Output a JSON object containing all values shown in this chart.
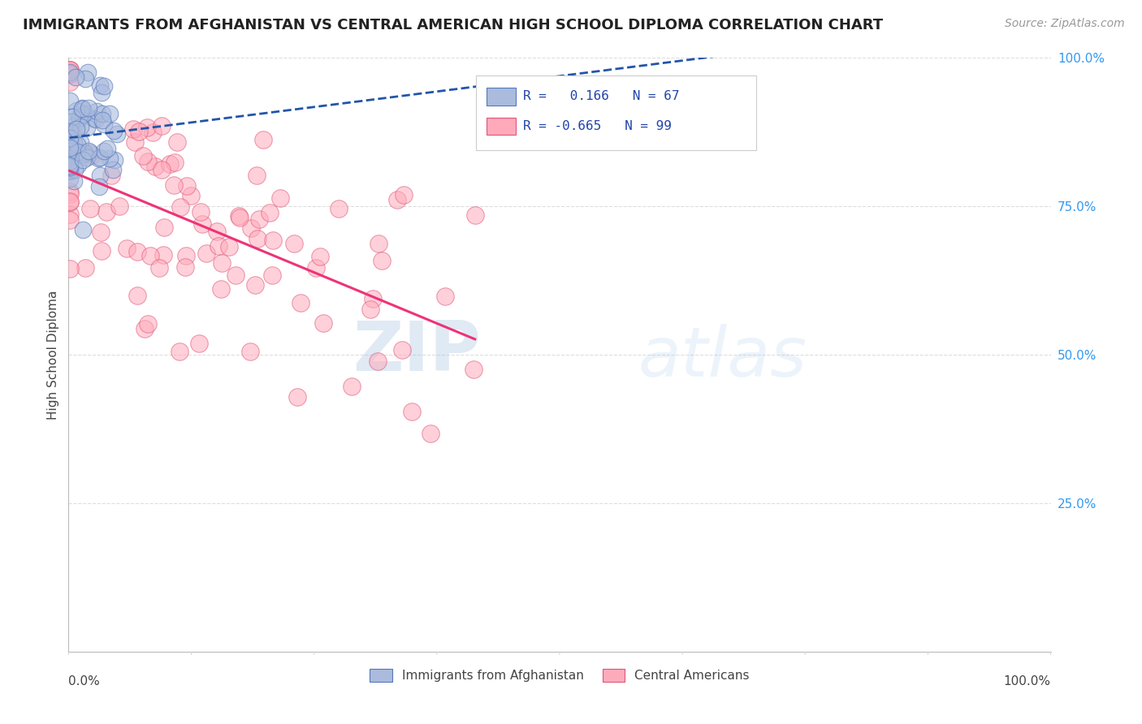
{
  "title": "IMMIGRANTS FROM AFGHANISTAN VS CENTRAL AMERICAN HIGH SCHOOL DIPLOMA CORRELATION CHART",
  "source": "Source: ZipAtlas.com",
  "ylabel": "High School Diploma",
  "afghanistan_color": "#aabbdd",
  "afghanistan_edge": "#5577bb",
  "central_color": "#ffaabb",
  "central_edge": "#dd5577",
  "afghanistan_line_color": "#2255aa",
  "central_line_color": "#ee3377",
  "R_afghanistan": 0.166,
  "N_afghanistan": 67,
  "R_central": -0.665,
  "N_central": 99,
  "legend_label_afghanistan": "Immigrants from Afghanistan",
  "legend_label_central": "Central Americans",
  "watermark_zip": "ZIP",
  "watermark_atlas": "atlas",
  "title_fontsize": 13,
  "source_fontsize": 10,
  "ytick_color": "#3399ee",
  "ytick_labels": [
    "",
    "25.0%",
    "50.0%",
    "75.0%",
    "100.0%"
  ],
  "ytick_vals": [
    0.0,
    0.25,
    0.5,
    0.75,
    1.0
  ]
}
